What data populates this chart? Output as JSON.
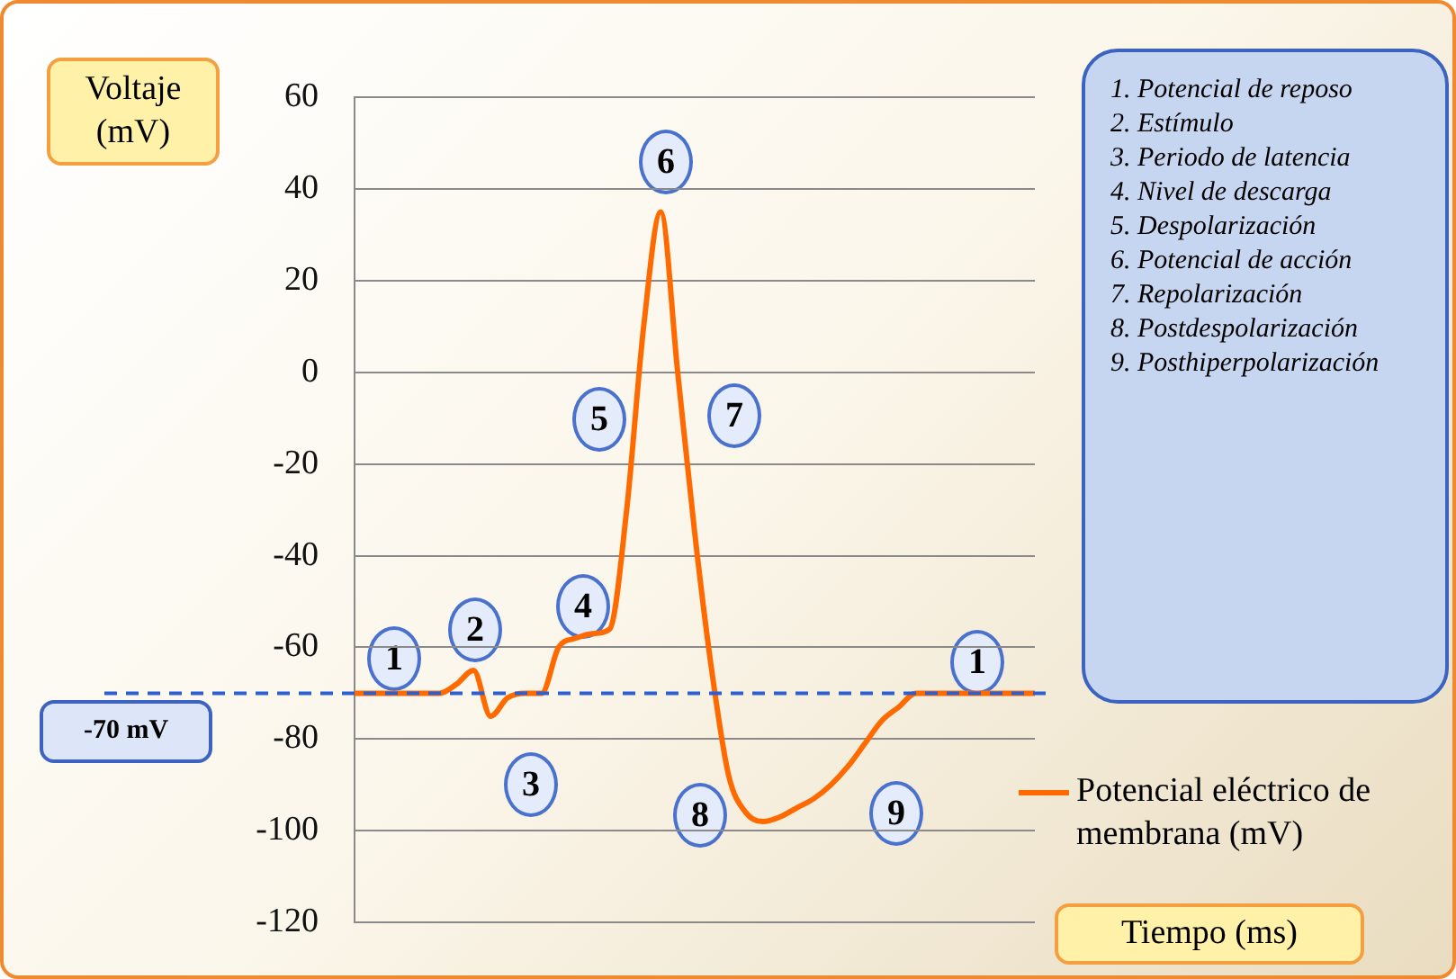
{
  "chart_data": {
    "type": "line",
    "xlabel": "Tiempo (ms)",
    "ylabel": "Voltaje (mV)",
    "categories": [
      null,
      null,
      null,
      null,
      null,
      null,
      null,
      null,
      null,
      null,
      null,
      null,
      null,
      null,
      null,
      null,
      null,
      null,
      null,
      null,
      null,
      null,
      null,
      null,
      null,
      null,
      null,
      null,
      null,
      null,
      null,
      null,
      null,
      null,
      null,
      null,
      null,
      null,
      null,
      null,
      null
    ],
    "series": [
      {
        "name": "Potencial eléctrico de membrana (mV)",
        "color": "#ff6a00",
        "values": [
          -70,
          -70,
          -70,
          -70,
          -70,
          -70,
          -68,
          -65,
          -75,
          -71,
          -70,
          -70,
          -60,
          -58,
          -57,
          -56,
          -30,
          10,
          35,
          0,
          -35,
          -65,
          -88,
          -96,
          -98,
          -97,
          -95,
          -93,
          -90,
          -86,
          -81,
          -76,
          -73,
          -70,
          -70,
          -70,
          -70,
          -70,
          -70,
          -70,
          -70
        ]
      }
    ],
    "ylim": [
      -120,
      60
    ],
    "yticks": [
      -120,
      -100,
      -80,
      -60,
      -40,
      -20,
      0,
      20,
      40,
      60
    ],
    "grid": "y",
    "legend": "bottom right",
    "marker": "none",
    "line_style": "solid",
    "ref_lines": [
      {
        "axis": "y",
        "value": -70,
        "label": "-70 mV",
        "color": "#2e5fd0",
        "line_style": "dashed"
      }
    ],
    "annotations": [
      "1",
      "2",
      "3",
      "4",
      "5",
      "6",
      "7",
      "8",
      "9",
      "1",
      "1. Potencial de reposo",
      "2. Estímulo",
      "3. Periodo de latencia",
      "4. Nivel de descarga",
      "5. Despolarización",
      "6. Potencial de acción",
      "7. Repolarización",
      "8. Postdespolarización",
      "9. Posthiperpolarización"
    ]
  }
}
